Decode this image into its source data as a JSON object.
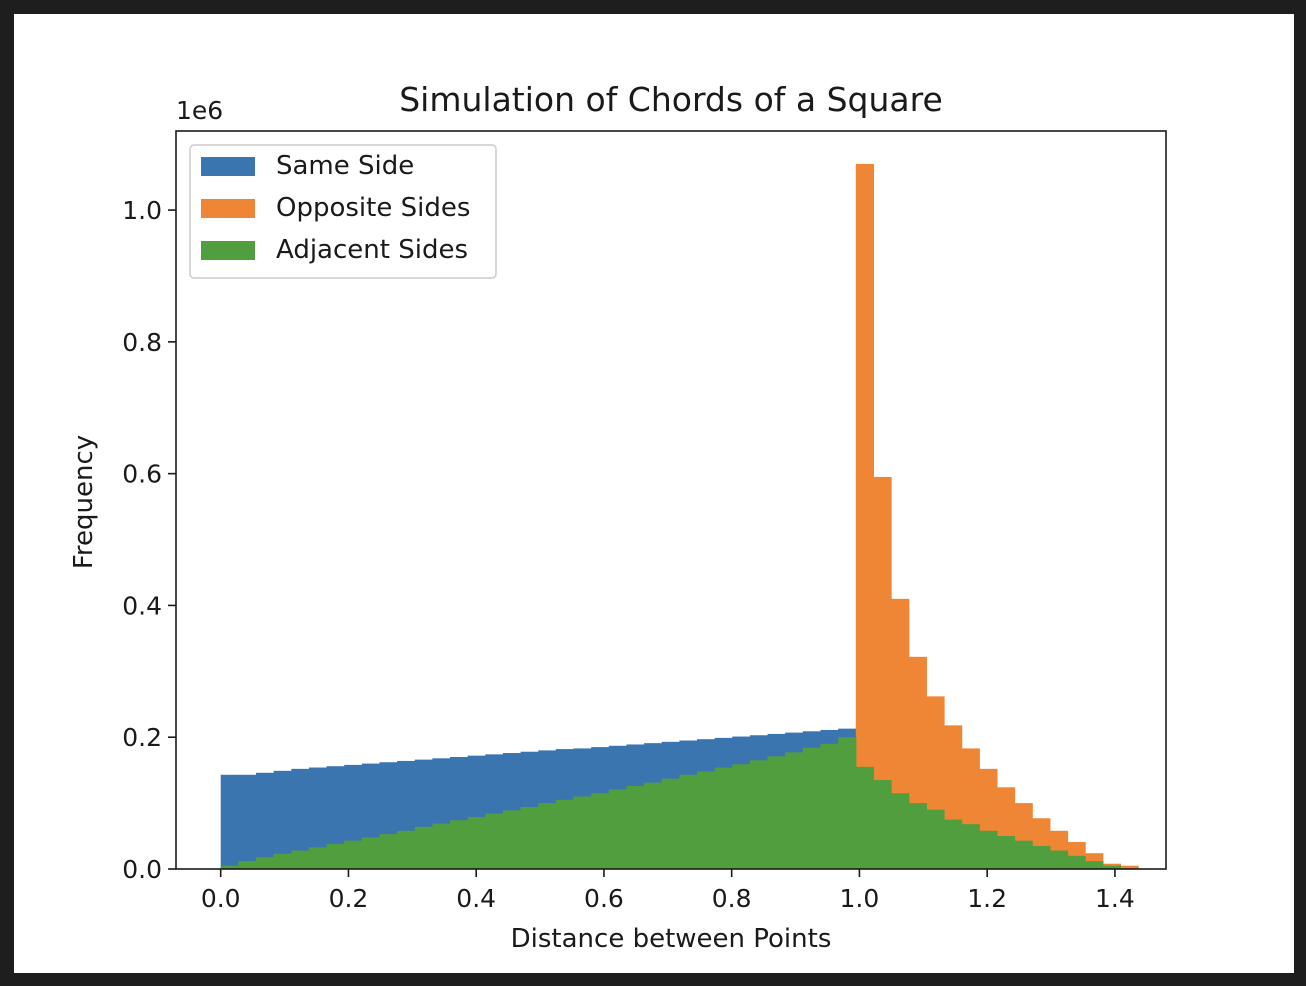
{
  "chart_data": {
    "type": "bar",
    "title": "Simulation of Chords of a Square",
    "xlabel": "Distance between Points",
    "ylabel": "Frequency",
    "y_offset_label": "1e6",
    "xlim": [
      -0.07,
      1.48
    ],
    "ylim": [
      0,
      1.12
    ],
    "xticks": [
      0.0,
      0.2,
      0.4,
      0.6,
      0.8,
      1.0,
      1.2,
      1.4
    ],
    "xtick_labels": [
      "0.0",
      "0.2",
      "0.4",
      "0.6",
      "0.8",
      "1.0",
      "1.2",
      "1.4"
    ],
    "yticks": [
      0.0,
      0.2,
      0.4,
      0.6,
      0.8,
      1.0
    ],
    "ytick_labels": [
      "0.0",
      "0.2",
      "0.4",
      "0.6",
      "0.8",
      "1.0"
    ],
    "grid": false,
    "legend_position": "upper-left",
    "bin_start": 0.0,
    "bin_width": 0.02762,
    "series": [
      {
        "name": "Same Side",
        "color": "#3b75af",
        "values": [
          0.143,
          0.143,
          0.146,
          0.149,
          0.152,
          0.154,
          0.156,
          0.158,
          0.16,
          0.162,
          0.164,
          0.166,
          0.168,
          0.17,
          0.172,
          0.174,
          0.176,
          0.178,
          0.18,
          0.182,
          0.183,
          0.185,
          0.187,
          0.189,
          0.191,
          0.193,
          0.195,
          0.197,
          0.199,
          0.201,
          0.203,
          0.205,
          0.207,
          0.209,
          0.211,
          0.213,
          0.215,
          0.218,
          0.22
        ]
      },
      {
        "name": "Opposite Sides",
        "color": "#ef8636",
        "values": [
          0.0,
          0.0,
          0.0,
          0.0,
          0.0,
          0.0,
          0.0,
          0.0,
          0.0,
          0.0,
          0.0,
          0.0,
          0.0,
          0.0,
          0.0,
          0.0,
          0.0,
          0.0,
          0.0,
          0.0,
          0.0,
          0.0,
          0.0,
          0.0,
          0.0,
          0.0,
          0.0,
          0.0,
          0.0,
          0.0,
          0.0,
          0.0,
          0.0,
          0.0,
          0.0,
          0.0,
          1.07,
          0.595,
          0.41,
          0.322,
          0.262,
          0.218,
          0.183,
          0.152,
          0.124,
          0.1,
          0.077,
          0.058,
          0.041,
          0.024,
          0.008,
          0.005
        ]
      },
      {
        "name": "Adjacent Sides",
        "color": "#519e3e",
        "values": [
          0.005,
          0.012,
          0.018,
          0.023,
          0.028,
          0.033,
          0.038,
          0.043,
          0.048,
          0.053,
          0.058,
          0.064,
          0.069,
          0.074,
          0.079,
          0.084,
          0.089,
          0.094,
          0.1,
          0.105,
          0.11,
          0.115,
          0.121,
          0.126,
          0.131,
          0.137,
          0.143,
          0.148,
          0.154,
          0.159,
          0.165,
          0.171,
          0.177,
          0.184,
          0.19,
          0.2,
          0.155,
          0.135,
          0.115,
          0.1,
          0.09,
          0.075,
          0.068,
          0.058,
          0.05,
          0.043,
          0.035,
          0.028,
          0.02,
          0.012,
          0.005
        ]
      }
    ]
  }
}
